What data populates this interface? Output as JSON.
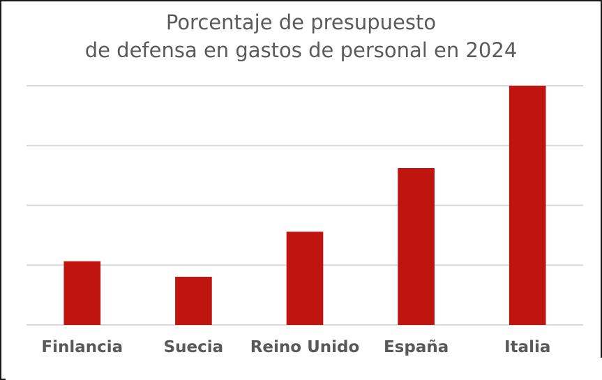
{
  "chart_data": {
    "type": "bar",
    "title_lines": [
      "Porcentaje de presupuesto",
      "de defensa en gastos de personal en 2024"
    ],
    "categories": [
      "Finlancia",
      "Suecia",
      "Reino Unido",
      "España",
      "Italia"
    ],
    "values": [
      20.5,
      15.5,
      30,
      50.5,
      77
    ],
    "ylim": [
      0,
      77
    ],
    "gridlines": [
      0,
      19.25,
      38.5,
      57.75,
      77
    ],
    "y_tick_labels_shown": false,
    "grid": true,
    "legend": "none",
    "bar_color": "#c0140f",
    "grid_color": "#d9d9d9",
    "text_color": "#595959"
  }
}
